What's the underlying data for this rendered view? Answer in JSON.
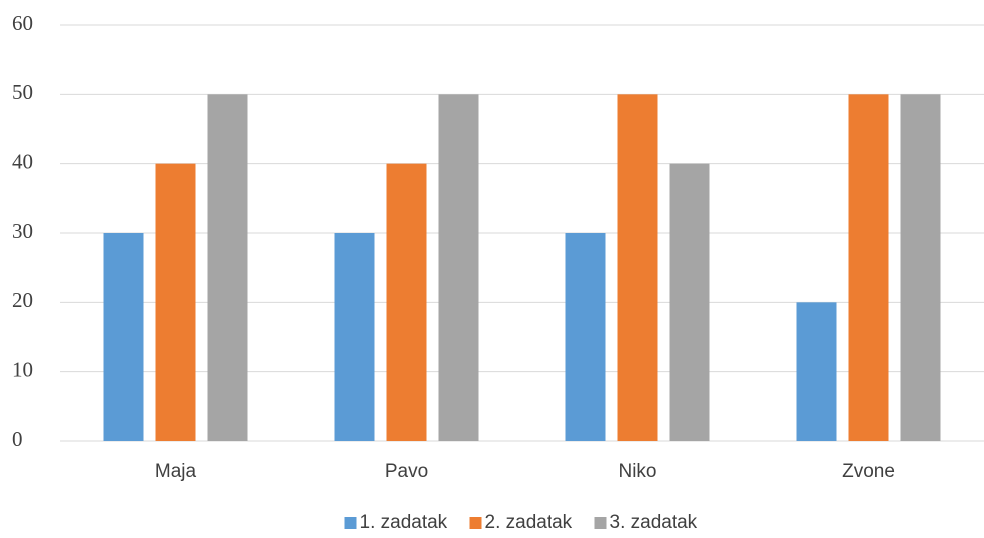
{
  "chart_data": {
    "type": "bar",
    "categories": [
      "Maja",
      "Pavo",
      "Niko",
      "Zvone"
    ],
    "series": [
      {
        "name": "1. zadatak",
        "color": "#5b9bd5",
        "values": [
          30,
          30,
          30,
          20
        ]
      },
      {
        "name": "2. zadatak",
        "color": "#ed7d31",
        "values": [
          40,
          40,
          50,
          50
        ]
      },
      {
        "name": "3. zadatak",
        "color": "#a5a5a5",
        "values": [
          50,
          50,
          40,
          50
        ]
      }
    ],
    "ylim": [
      0,
      60
    ],
    "yticks": [
      0,
      10,
      20,
      30,
      40,
      50,
      60
    ],
    "grid": true,
    "legend": "bottom"
  }
}
